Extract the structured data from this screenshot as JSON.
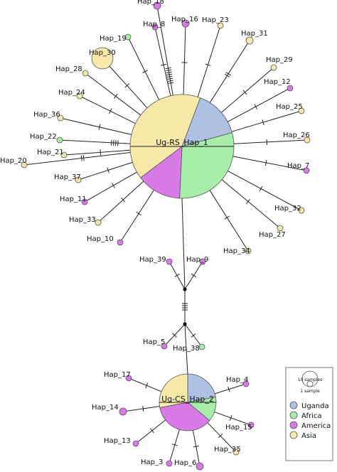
{
  "colors": {
    "Uganda": "#aec1e3",
    "Africa": "#a8ecaa",
    "America": "#d77ae6",
    "Asia": "#f6e8a8"
  },
  "hubs": [
    {
      "id": "Hap_1",
      "label": "Ug-RS_Hap_1",
      "slices": [
        {
          "group": "Uganda",
          "fraction": 0.15
        },
        {
          "group": "Africa",
          "fraction": 0.3
        },
        {
          "group": "America",
          "fraction": 0.14
        },
        {
          "group": "Asia",
          "fraction": 0.41
        }
      ]
    },
    {
      "id": "Hap_2",
      "label": "Ug-CS_Hap_2",
      "slices": [
        {
          "group": "Uganda",
          "fraction": 0.22
        },
        {
          "group": "Africa",
          "fraction": 0.14
        },
        {
          "group": "America",
          "fraction": 0.36
        },
        {
          "group": "Asia",
          "fraction": 0.28
        }
      ]
    }
  ],
  "haplotypes": [
    {
      "label": "Hap_18",
      "group": "America",
      "hub": "Hap_1",
      "ticks": 8
    },
    {
      "label": "Hap_16",
      "group": "America",
      "hub": "Hap_1",
      "ticks": 1
    },
    {
      "label": "Hap_8",
      "group": "America",
      "hub": "Hap_1",
      "ticks": 1
    },
    {
      "label": "Hap_19",
      "group": "Africa",
      "hub": "Hap_1",
      "ticks": 1
    },
    {
      "label": "Hap_23",
      "group": "Asia",
      "hub": "Hap_1",
      "ticks": 1
    },
    {
      "label": "Hap_31",
      "group": "Asia",
      "hub": "Hap_1",
      "ticks": 2
    },
    {
      "label": "Hap_30",
      "group": "Asia",
      "hub": "Hap_1",
      "ticks": 1
    },
    {
      "label": "Hap_29",
      "group": "Asia",
      "hub": "Hap_1",
      "ticks": 1
    },
    {
      "label": "Hap_28",
      "group": "Asia",
      "hub": "Hap_1",
      "ticks": 1
    },
    {
      "label": "Hap_12",
      "group": "America",
      "hub": "Hap_1",
      "ticks": 1
    },
    {
      "label": "Hap_24",
      "group": "Asia",
      "hub": "Hap_1",
      "ticks": 1
    },
    {
      "label": "Hap_25",
      "group": "Asia",
      "hub": "Hap_1",
      "ticks": 1
    },
    {
      "label": "Hap_36",
      "group": "Asia",
      "hub": "Hap_1",
      "ticks": 1
    },
    {
      "label": "Hap_26",
      "group": "Asia",
      "hub": "Hap_1",
      "ticks": 1
    },
    {
      "label": "Hap_22",
      "group": "Africa",
      "hub": "Hap_1",
      "ticks": 4
    },
    {
      "label": "Hap_7",
      "group": "America",
      "hub": "Hap_1",
      "ticks": 1
    },
    {
      "label": "Hap_21",
      "group": "Asia",
      "hub": "Hap_1",
      "ticks": 1
    },
    {
      "label": "Hap_20",
      "group": "Asia",
      "hub": "Hap_1",
      "ticks": 2
    },
    {
      "label": "Hap_37",
      "group": "Asia",
      "hub": "Hap_1",
      "ticks": 1
    },
    {
      "label": "Hap_32",
      "group": "Asia",
      "hub": "Hap_1",
      "ticks": 1
    },
    {
      "label": "Hap_11",
      "group": "America",
      "hub": "Hap_1",
      "ticks": 1
    },
    {
      "label": "Hap_27",
      "group": "Asia",
      "hub": "Hap_1",
      "ticks": 1
    },
    {
      "label": "Hap_33",
      "group": "Asia",
      "hub": "Hap_1",
      "ticks": 1
    },
    {
      "label": "Hap_34",
      "group": "Asia",
      "hub": "Hap_1",
      "ticks": 1
    },
    {
      "label": "Hap_10",
      "group": "America",
      "hub": "Hap_1",
      "ticks": 1
    },
    {
      "label": "Hap_39",
      "group": "America",
      "hub": "Hap_1",
      "ticks": 1
    },
    {
      "label": "Hap_9",
      "group": "America",
      "hub": "Hap_1",
      "ticks": 1
    },
    {
      "label": "Hap_5",
      "group": "America",
      "hub": "Hap_2",
      "ticks": 1
    },
    {
      "label": "Hap_38",
      "group": "Africa",
      "hub": "Hap_2",
      "ticks": 1
    },
    {
      "label": "Hap_17",
      "group": "America",
      "hub": "Hap_2",
      "ticks": 1
    },
    {
      "label": "Hap_4",
      "group": "America",
      "hub": "Hap_2",
      "ticks": 1
    },
    {
      "label": "Hap_14",
      "group": "America",
      "hub": "Hap_2",
      "ticks": 1
    },
    {
      "label": "Hap_15",
      "group": "America",
      "hub": "Hap_2",
      "ticks": 1
    },
    {
      "label": "Hap_13",
      "group": "America",
      "hub": "Hap_2",
      "ticks": 1
    },
    {
      "label": "Hap_35",
      "group": "Asia",
      "hub": "Hap_2",
      "ticks": 1
    },
    {
      "label": "Hap_3",
      "group": "America",
      "hub": "Hap_2",
      "ticks": 1
    },
    {
      "label": "Hap_6",
      "group": "America",
      "hub": "Hap_2",
      "ticks": 1
    }
  ],
  "bridge_ticks": 4,
  "legend": {
    "scale_large": "10 samples",
    "scale_small": "1 sample",
    "entries": [
      "Uganda",
      "Africa",
      "America",
      "Asia"
    ]
  }
}
